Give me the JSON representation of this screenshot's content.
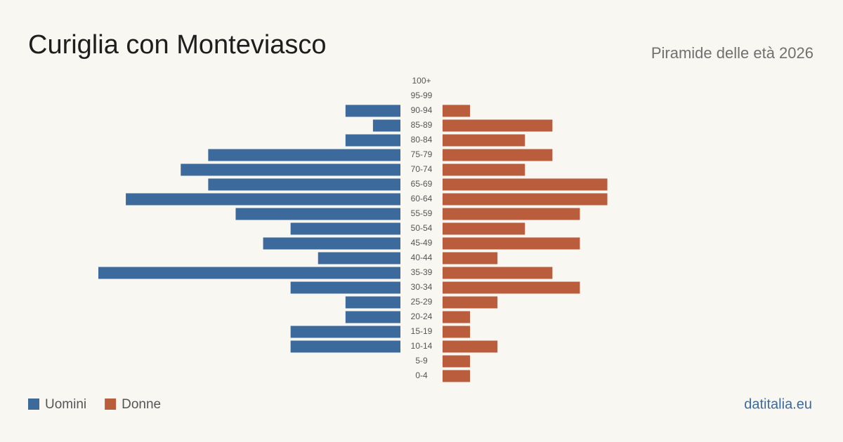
{
  "chart_data": {
    "type": "pyramid",
    "title": "Curiglia con Monteviasco",
    "subtitle": "Piramide delle età 2026",
    "source": "datitalia.eu",
    "categories": [
      "100+",
      "95-99",
      "90-94",
      "85-89",
      "80-84",
      "75-79",
      "70-74",
      "65-69",
      "60-64",
      "55-59",
      "50-54",
      "45-49",
      "40-44",
      "35-39",
      "30-34",
      "25-29",
      "20-24",
      "15-19",
      "10-14",
      "5-9",
      "0-4"
    ],
    "series": [
      {
        "name": "Uomini",
        "color": "#3d6a9c",
        "values": [
          0,
          0,
          2,
          1,
          2,
          7,
          8,
          7,
          10,
          6,
          4,
          5,
          3,
          11,
          4,
          2,
          2,
          4,
          4,
          0,
          0
        ]
      },
      {
        "name": "Donne",
        "color": "#b95d3d",
        "values": [
          0,
          0,
          1,
          4,
          3,
          4,
          3,
          6,
          6,
          5,
          3,
          5,
          2,
          4,
          5,
          2,
          1,
          1,
          2,
          1,
          1
        ]
      }
    ]
  }
}
